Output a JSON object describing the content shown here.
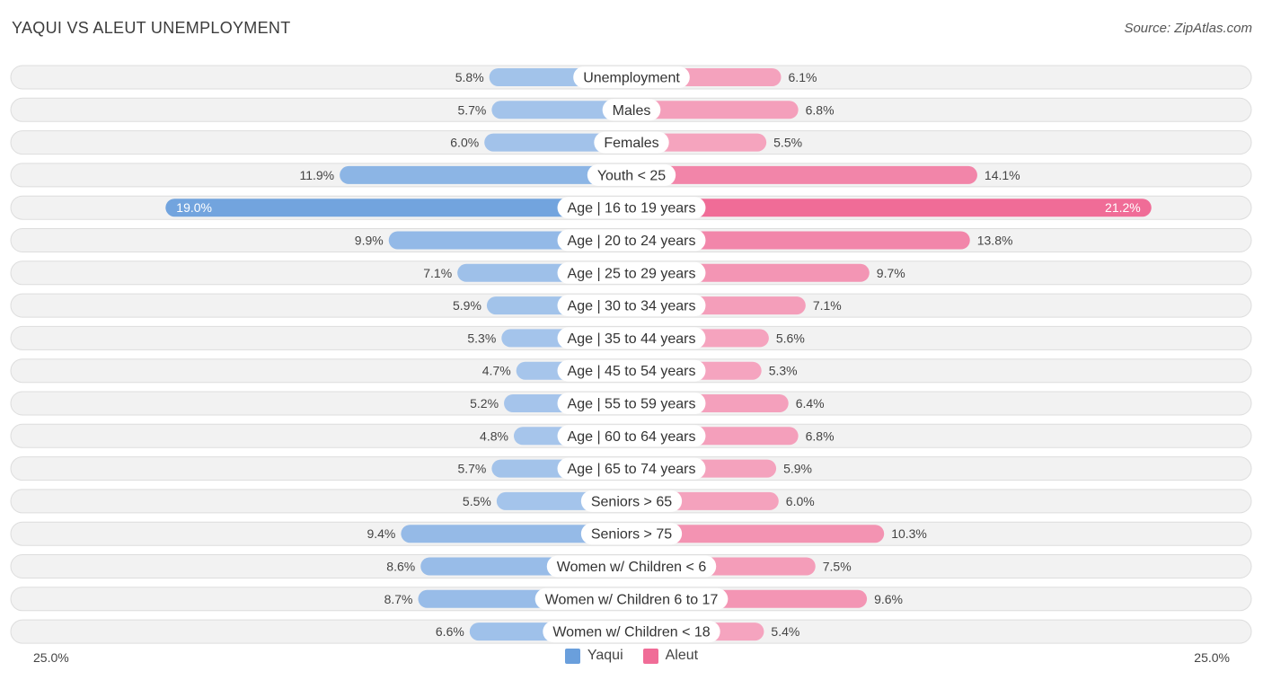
{
  "header": {
    "title": "YAQUI VS ALEUT UNEMPLOYMENT",
    "source": "Source: ZipAtlas.com"
  },
  "colors": {
    "yaqui_light": "#a9c7ec",
    "yaqui_dark": "#6a9fdc",
    "aleut_light": "#f5a9c2",
    "aleut_dark": "#f06c97",
    "row_bg": "#f2f2f2",
    "row_border": "#dddddd"
  },
  "legend": {
    "yaqui": "Yaqui",
    "aleut": "Aleut"
  },
  "axis": {
    "left_label": "25.0%",
    "right_label": "25.0%"
  },
  "chart_data": {
    "type": "bar",
    "orientation": "horizontal-diverging",
    "title": "YAQUI VS ALEUT UNEMPLOYMENT",
    "xlim": [
      -25,
      25
    ],
    "categories": [
      "Unemployment",
      "Males",
      "Females",
      "Youth < 25",
      "Age | 16 to 19 years",
      "Age | 20 to 24 years",
      "Age | 25 to 29 years",
      "Age | 30 to 34 years",
      "Age | 35 to 44 years",
      "Age | 45 to 54 years",
      "Age | 55 to 59 years",
      "Age | 60 to 64 years",
      "Age | 65 to 74 years",
      "Seniors > 65",
      "Seniors > 75",
      "Women w/ Children < 6",
      "Women w/ Children 6 to 17",
      "Women w/ Children < 18"
    ],
    "series": [
      {
        "name": "Yaqui",
        "values": [
          5.8,
          5.7,
          6.0,
          11.9,
          19.0,
          9.9,
          7.1,
          5.9,
          5.3,
          4.7,
          5.2,
          4.8,
          5.7,
          5.5,
          9.4,
          8.6,
          8.7,
          6.6
        ],
        "labels": [
          "5.8%",
          "5.7%",
          "6.0%",
          "11.9%",
          "19.0%",
          "9.9%",
          "7.1%",
          "5.9%",
          "5.3%",
          "4.7%",
          "5.2%",
          "4.8%",
          "5.7%",
          "5.5%",
          "9.4%",
          "8.6%",
          "8.7%",
          "6.6%"
        ]
      },
      {
        "name": "Aleut",
        "values": [
          6.1,
          6.8,
          5.5,
          14.1,
          21.2,
          13.8,
          9.7,
          7.1,
          5.6,
          5.3,
          6.4,
          6.8,
          5.9,
          6.0,
          10.3,
          7.5,
          9.6,
          5.4
        ],
        "labels": [
          "6.1%",
          "6.8%",
          "5.5%",
          "14.1%",
          "21.2%",
          "13.8%",
          "9.7%",
          "7.1%",
          "5.6%",
          "5.3%",
          "6.4%",
          "6.8%",
          "5.9%",
          "6.0%",
          "10.3%",
          "7.5%",
          "9.6%",
          "5.4%"
        ]
      }
    ]
  }
}
